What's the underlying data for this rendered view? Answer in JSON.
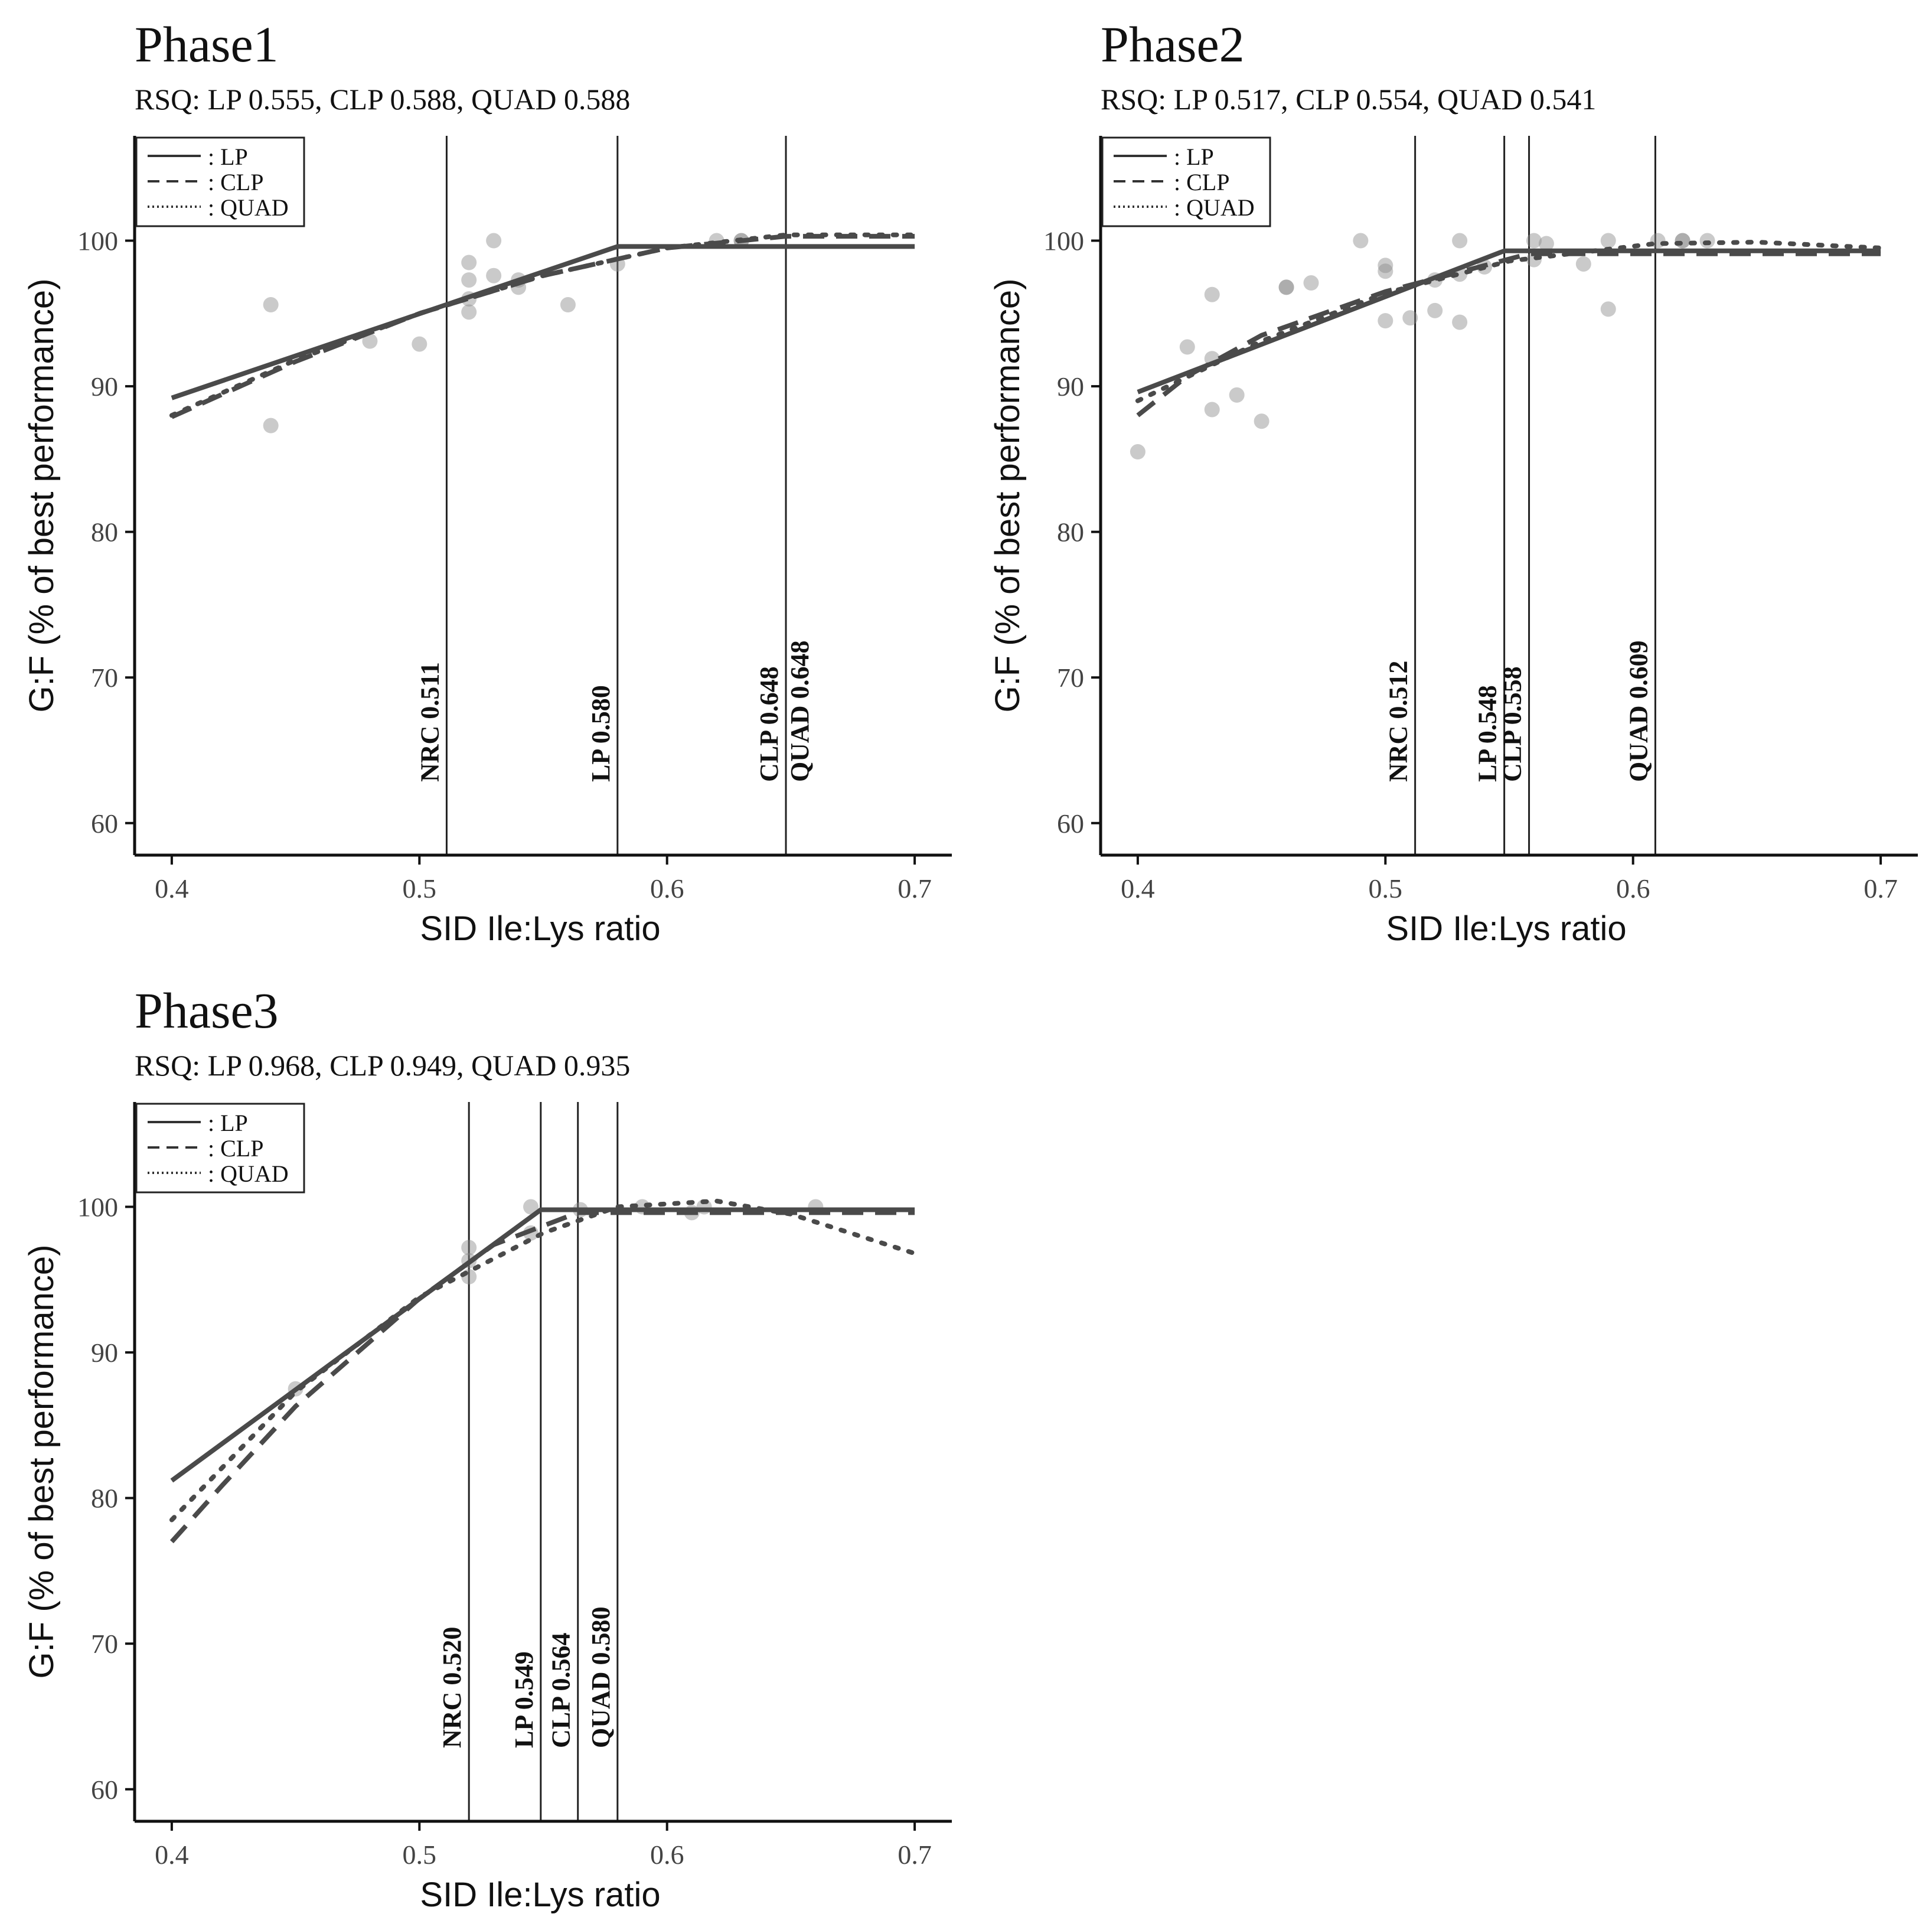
{
  "chart_data": [
    {
      "type": "scatter",
      "title": "Phase1",
      "subtitle": "RSQ:  LP 0.555, CLP 0.588, QUAD 0.588",
      "xlabel": "SID Ile:Lys ratio",
      "ylabel": "G:F (% of best performance)",
      "xlim": [
        0.385,
        0.715
      ],
      "ylim": [
        57.8,
        107.2
      ],
      "xticks": [
        "0.4",
        "0.5",
        "0.6",
        "0.7"
      ],
      "yticks": [
        "60",
        "70",
        "80",
        "90",
        "100"
      ],
      "legend": {
        "position": "top-left",
        "entries": [
          ": LP",
          ": CLP",
          ": QUAD"
        ]
      },
      "points": [
        [
          0.44,
          95.6
        ],
        [
          0.44,
          87.3
        ],
        [
          0.48,
          93.1
        ],
        [
          0.5,
          92.9
        ],
        [
          0.52,
          98.5
        ],
        [
          0.52,
          97.3
        ],
        [
          0.52,
          96.0
        ],
        [
          0.52,
          95.1
        ],
        [
          0.53,
          100.0
        ],
        [
          0.53,
          97.6
        ],
        [
          0.54,
          97.3
        ],
        [
          0.54,
          96.8
        ],
        [
          0.56,
          95.6
        ],
        [
          0.58,
          98.4
        ],
        [
          0.62,
          100.0
        ],
        [
          0.63,
          100.0
        ],
        [
          0.63,
          100.0
        ]
      ],
      "series": [
        {
          "name": "LP",
          "points": [
            [
              0.4,
              89.2
            ],
            [
              0.58,
              99.6
            ],
            [
              0.7,
              99.6
            ]
          ]
        },
        {
          "name": "CLP",
          "points": [
            [
              0.4,
              87.9
            ],
            [
              0.45,
              91.7
            ],
            [
              0.5,
              95.0
            ],
            [
              0.55,
              97.6
            ],
            [
              0.6,
              99.5
            ],
            [
              0.648,
              100.3
            ],
            [
              0.7,
              100.3
            ]
          ]
        },
        {
          "name": "QUAD",
          "points": [
            [
              0.4,
              88.0
            ],
            [
              0.45,
              91.8
            ],
            [
              0.5,
              95.0
            ],
            [
              0.55,
              97.6
            ],
            [
              0.6,
              99.5
            ],
            [
              0.648,
              100.4
            ],
            [
              0.7,
              100.4
            ]
          ]
        }
      ],
      "vlines": [
        {
          "label": "NRC 0.511",
          "x": 0.511
        },
        {
          "label": "LP 0.580",
          "x": 0.58
        },
        {
          "label": "CLP 0.648",
          "x": 0.648
        },
        {
          "label": "QUAD 0.648",
          "x": 0.648
        }
      ]
    },
    {
      "type": "scatter",
      "title": "Phase2",
      "subtitle": "RSQ:  LP 0.517, CLP 0.554, QUAD 0.541",
      "xlabel": "SID Ile:Lys ratio",
      "ylabel": "G:F (% of best performance)",
      "xlim": [
        0.385,
        0.715
      ],
      "ylim": [
        57.8,
        107.2
      ],
      "xticks": [
        "0.4",
        "0.5",
        "0.6",
        "0.7"
      ],
      "yticks": [
        "60",
        "70",
        "80",
        "90",
        "100"
      ],
      "legend": {
        "position": "top-left",
        "entries": [
          ": LP",
          ": CLP",
          ": QUAD"
        ]
      },
      "points": [
        [
          0.4,
          85.5
        ],
        [
          0.42,
          92.7
        ],
        [
          0.43,
          96.3
        ],
        [
          0.43,
          91.9
        ],
        [
          0.43,
          88.4
        ],
        [
          0.44,
          89.4
        ],
        [
          0.45,
          87.6
        ],
        [
          0.46,
          96.8
        ],
        [
          0.46,
          96.8
        ],
        [
          0.47,
          97.1
        ],
        [
          0.49,
          100.0
        ],
        [
          0.5,
          98.3
        ],
        [
          0.5,
          97.9
        ],
        [
          0.5,
          94.5
        ],
        [
          0.51,
          94.7
        ],
        [
          0.52,
          97.3
        ],
        [
          0.52,
          95.2
        ],
        [
          0.53,
          100.0
        ],
        [
          0.53,
          97.7
        ],
        [
          0.53,
          94.4
        ],
        [
          0.54,
          98.2
        ],
        [
          0.56,
          100.0
        ],
        [
          0.56,
          98.7
        ],
        [
          0.565,
          99.8
        ],
        [
          0.58,
          98.4
        ],
        [
          0.59,
          100.0
        ],
        [
          0.59,
          95.3
        ],
        [
          0.61,
          100.0
        ],
        [
          0.62,
          100.0
        ],
        [
          0.62,
          100.0
        ],
        [
          0.63,
          100.0
        ]
      ],
      "series": [
        {
          "name": "LP",
          "points": [
            [
              0.4,
              89.6
            ],
            [
              0.548,
              99.3
            ],
            [
              0.7,
              99.3
            ]
          ]
        },
        {
          "name": "CLP",
          "points": [
            [
              0.4,
              88.0
            ],
            [
              0.42,
              90.7
            ],
            [
              0.45,
              93.5
            ],
            [
              0.5,
              96.5
            ],
            [
              0.558,
              99.1
            ],
            [
              0.7,
              99.1
            ]
          ]
        },
        {
          "name": "QUAD",
          "points": [
            [
              0.4,
              89.0
            ],
            [
              0.45,
              93.1
            ],
            [
              0.5,
              96.4
            ],
            [
              0.55,
              98.6
            ],
            [
              0.609,
              99.8
            ],
            [
              0.65,
              99.9
            ],
            [
              0.7,
              99.5
            ]
          ]
        }
      ],
      "vlines": [
        {
          "label": "NRC 0.512",
          "x": 0.512
        },
        {
          "label": "LP 0.548",
          "x": 0.548
        },
        {
          "label": "CLP 0.558",
          "x": 0.558
        },
        {
          "label": "QUAD 0.609",
          "x": 0.609
        }
      ]
    },
    {
      "type": "scatter",
      "title": "Phase3",
      "subtitle": "RSQ:  LP 0.968, CLP 0.949, QUAD 0.935",
      "xlabel": "SID Ile:Lys ratio",
      "ylabel": "G:F (% of best performance)",
      "xlim": [
        0.385,
        0.715
      ],
      "ylim": [
        57.8,
        107.2
      ],
      "xticks": [
        "0.4",
        "0.5",
        "0.6",
        "0.7"
      ],
      "yticks": [
        "60",
        "70",
        "80",
        "90",
        "100"
      ],
      "legend": {
        "position": "top-left",
        "entries": [
          ": LP",
          ": CLP",
          ": QUAD"
        ]
      },
      "points": [
        [
          0.45,
          87.5
        ],
        [
          0.52,
          97.2
        ],
        [
          0.52,
          96.3
        ],
        [
          0.52,
          95.2
        ],
        [
          0.545,
          100.0
        ],
        [
          0.545,
          98.2
        ],
        [
          0.565,
          99.8
        ],
        [
          0.59,
          100.0
        ],
        [
          0.61,
          99.6
        ],
        [
          0.615,
          100.0
        ],
        [
          0.66,
          100.0
        ]
      ],
      "series": [
        {
          "name": "LP",
          "points": [
            [
              0.4,
              81.2
            ],
            [
              0.549,
              99.8
            ],
            [
              0.7,
              99.8
            ]
          ]
        },
        {
          "name": "CLP",
          "points": [
            [
              0.4,
              77.0
            ],
            [
              0.42,
              80.8
            ],
            [
              0.45,
              86.3
            ],
            [
              0.5,
              93.7
            ],
            [
              0.53,
              97.4
            ],
            [
              0.564,
              99.6
            ],
            [
              0.7,
              99.6
            ]
          ]
        },
        {
          "name": "QUAD",
          "points": [
            [
              0.4,
              78.5
            ],
            [
              0.45,
              87.3
            ],
            [
              0.5,
              93.8
            ],
            [
              0.55,
              98.2
            ],
            [
              0.58,
              100.0
            ],
            [
              0.62,
              100.4
            ],
            [
              0.65,
              99.5
            ],
            [
              0.7,
              96.8
            ]
          ]
        }
      ],
      "vlines": [
        {
          "label": "NRC 0.520",
          "x": 0.52
        },
        {
          "label": "LP 0.549",
          "x": 0.549
        },
        {
          "label": "CLP 0.564",
          "x": 0.564
        },
        {
          "label": "QUAD 0.580",
          "x": 0.58
        }
      ]
    }
  ]
}
